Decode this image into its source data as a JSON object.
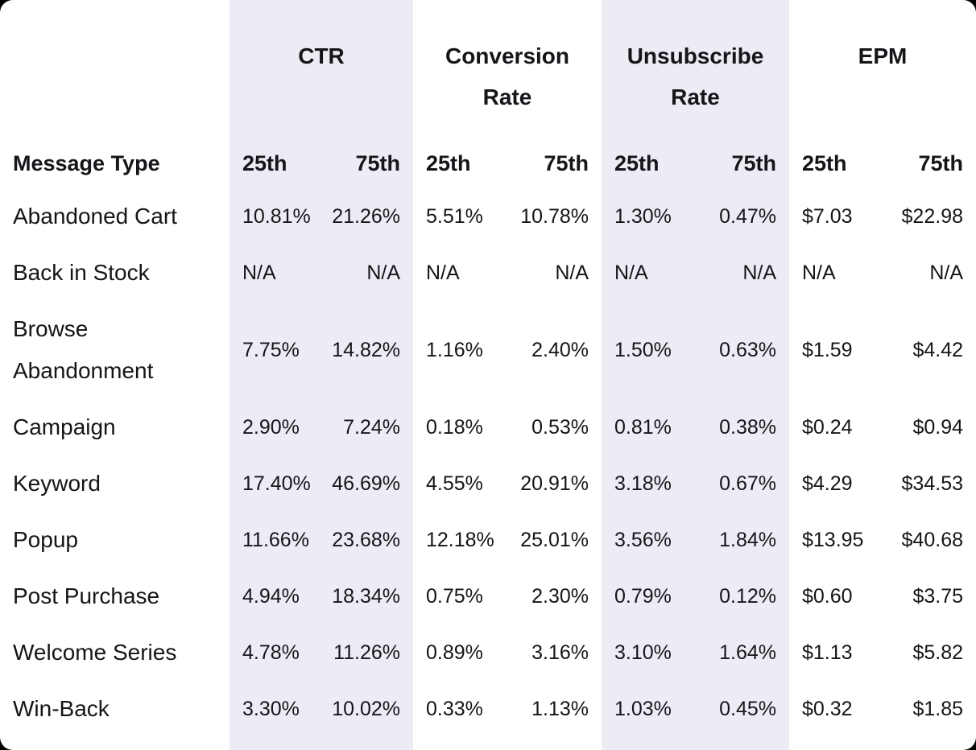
{
  "chart_data": {
    "type": "table",
    "row_header": "Message Type",
    "column_groups": [
      "CTR",
      "Conversion Rate",
      "Unsubscribe Rate",
      "EPM"
    ],
    "highlighted_groups": [
      "CTR",
      "Unsubscribe Rate"
    ],
    "sub_columns": [
      "25th",
      "75th"
    ],
    "rows": [
      {
        "message_type": "Abandoned Cart",
        "values": [
          [
            "10.81%",
            "21.26%"
          ],
          [
            "5.51%",
            "10.78%"
          ],
          [
            "1.30%",
            "0.47%"
          ],
          [
            "$7.03",
            "$22.98"
          ]
        ]
      },
      {
        "message_type": "Back in Stock",
        "values": [
          [
            "N/A",
            "N/A"
          ],
          [
            "N/A",
            "N/A"
          ],
          [
            "N/A",
            "N/A"
          ],
          [
            "N/A",
            "N/A"
          ]
        ]
      },
      {
        "message_type": "Browse Abandonment",
        "values": [
          [
            "7.75%",
            "14.82%"
          ],
          [
            "1.16%",
            "2.40%"
          ],
          [
            "1.50%",
            "0.63%"
          ],
          [
            "$1.59",
            "$4.42"
          ]
        ]
      },
      {
        "message_type": "Campaign",
        "values": [
          [
            "2.90%",
            "7.24%"
          ],
          [
            "0.18%",
            "0.53%"
          ],
          [
            "0.81%",
            "0.38%"
          ],
          [
            "$0.24",
            "$0.94"
          ]
        ]
      },
      {
        "message_type": "Keyword",
        "values": [
          [
            "17.40%",
            "46.69%"
          ],
          [
            "4.55%",
            "20.91%"
          ],
          [
            "3.18%",
            "0.67%"
          ],
          [
            "$4.29",
            "$34.53"
          ]
        ]
      },
      {
        "message_type": "Popup",
        "values": [
          [
            "11.66%",
            "23.68%"
          ],
          [
            "12.18%",
            "25.01%"
          ],
          [
            "3.56%",
            "1.84%"
          ],
          [
            "$13.95",
            "$40.68"
          ]
        ]
      },
      {
        "message_type": "Post Purchase",
        "values": [
          [
            "4.94%",
            "18.34%"
          ],
          [
            "0.75%",
            "2.30%"
          ],
          [
            "0.79%",
            "0.12%"
          ],
          [
            "$0.60",
            "$3.75"
          ]
        ]
      },
      {
        "message_type": "Welcome Series",
        "values": [
          [
            "4.78%",
            "11.26%"
          ],
          [
            "0.89%",
            "3.16%"
          ],
          [
            "3.10%",
            "1.64%"
          ],
          [
            "$1.13",
            "$5.82"
          ]
        ]
      },
      {
        "message_type": "Win-Back",
        "values": [
          [
            "3.30%",
            "10.02%"
          ],
          [
            "0.33%",
            "1.13%"
          ],
          [
            "1.03%",
            "0.45%"
          ],
          [
            "$0.32",
            "$1.85"
          ]
        ]
      }
    ],
    "colors": {
      "highlight_band": "#ECECF4",
      "text": "#15151A",
      "card_background": "#FFFFFF",
      "page_background": "#000000"
    }
  }
}
